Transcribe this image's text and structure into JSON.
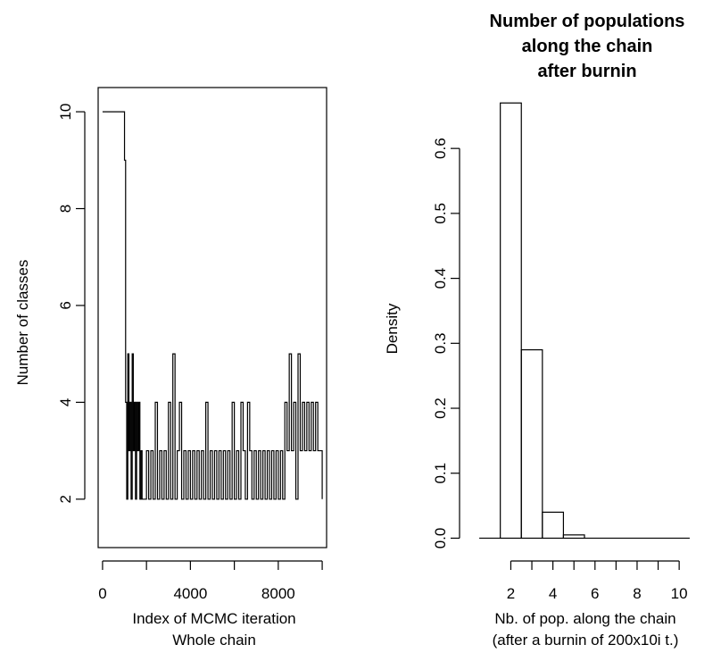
{
  "chart_data": [
    {
      "type": "line",
      "title": "",
      "xlabel": "Index of MCMC iteration",
      "xsublabel": "Whole chain",
      "ylabel": "Number of classes",
      "xlim": [
        -200,
        10200
      ],
      "ylim": [
        1,
        10.5
      ],
      "xticks": [
        0,
        4000,
        8000
      ],
      "xticks_minor": [
        2000,
        6000,
        10000
      ],
      "yticks": [
        2,
        4,
        6,
        8,
        10
      ],
      "grid": false,
      "series": [
        {
          "x": [
            0,
            1000,
            1000,
            1050,
            1100,
            1150,
            1200,
            1250,
            1300,
            1350,
            1400,
            1450,
            1500,
            1550,
            1600,
            1650,
            1700,
            1750,
            1800,
            1900,
            2000,
            2100,
            2200,
            2300,
            2400,
            2500,
            2600,
            2700,
            2800,
            2900,
            3000,
            3100,
            3200,
            3300,
            3400,
            3500,
            3600,
            3700,
            3800,
            3900,
            4000,
            4100,
            4200,
            4300,
            4400,
            4500,
            4600,
            4700,
            4800,
            4900,
            5000,
            5100,
            5200,
            5300,
            5400,
            5500,
            5600,
            5700,
            5800,
            5900,
            6000,
            6100,
            6200,
            6300,
            6400,
            6500,
            6600,
            6700,
            6800,
            6900,
            7000,
            7100,
            7200,
            7300,
            7400,
            7500,
            7600,
            7700,
            7800,
            7900,
            8000,
            8100,
            8200,
            8300,
            8400,
            8500,
            8600,
            8700,
            8800,
            8900,
            9000,
            9100,
            9200,
            9300,
            9400,
            9500,
            9600,
            9700,
            9800,
            9900,
            10000
          ],
          "y": [
            10,
            10,
            9,
            4,
            2,
            5,
            3,
            4,
            2,
            5,
            3,
            4,
            2,
            4,
            3,
            4,
            2,
            3,
            2,
            2,
            3,
            2,
            3,
            2,
            4,
            2,
            3,
            2,
            3,
            2,
            4,
            2,
            5,
            2,
            3,
            4,
            2,
            3,
            2,
            3,
            2,
            3,
            2,
            3,
            2,
            3,
            2,
            4,
            2,
            3,
            2,
            3,
            2,
            3,
            2,
            3,
            2,
            3,
            2,
            4,
            2,
            3,
            2,
            4,
            3,
            2,
            4,
            3,
            2,
            3,
            2,
            3,
            2,
            3,
            2,
            3,
            2,
            3,
            2,
            3,
            2,
            3,
            2,
            4,
            3,
            5,
            3,
            4,
            2,
            5,
            3,
            4,
            3,
            4,
            3,
            4,
            3,
            4,
            3,
            3,
            2
          ]
        }
      ]
    },
    {
      "type": "bar",
      "title_lines": [
        "Number of populations",
        "along the chain",
        "after burnin"
      ],
      "xlabel": "Nb. of pop. along the chain",
      "xsublabel": "(after a burnin of 200x10i t.)",
      "ylabel": "Density",
      "xlim": [
        0.2,
        10.8
      ],
      "ylim": [
        -0.02,
        0.68
      ],
      "xticks": [
        2,
        4,
        6,
        8,
        10
      ],
      "xticks_minor": [
        3,
        5,
        7,
        9
      ],
      "yticks": [
        0.0,
        0.1,
        0.2,
        0.3,
        0.4,
        0.5,
        0.6
      ],
      "ytick_labels": [
        "0.0",
        "0.1",
        "0.2",
        "0.3",
        "0.4",
        "0.5",
        "0.6"
      ],
      "bins": [
        {
          "x0": 1.5,
          "x1": 2.5,
          "value": 0.67
        },
        {
          "x0": 2.5,
          "x1": 3.5,
          "value": 0.29
        },
        {
          "x0": 3.5,
          "x1": 4.5,
          "value": 0.04
        },
        {
          "x0": 4.5,
          "x1": 5.5,
          "value": 0.005
        }
      ],
      "zero_line": [
        [
          0.5,
          1.5
        ],
        [
          5.5,
          10.5
        ]
      ],
      "grid": false
    }
  ]
}
